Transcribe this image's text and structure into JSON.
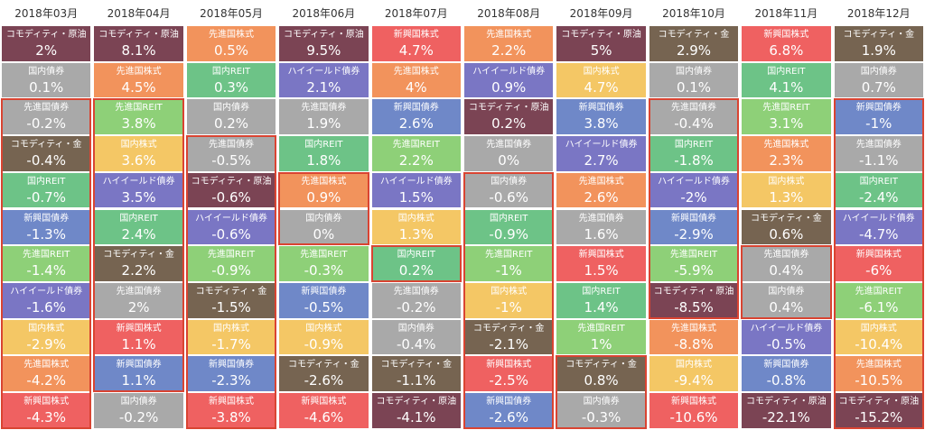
{
  "colors": {
    "コモディティ・原油": "#7b4454",
    "コモディティ・金": "#766451",
    "先進国株式": "#f2935c",
    "国内債券": "#a9a9a9",
    "ハイイールド債券": "#7a76c4",
    "新興国株式": "#ef6161",
    "国内株式": "#f4c765",
    "先進国債券": "#a9a9a9",
    "国内REIT": "#6dc387",
    "新興国債券": "#6f88c8",
    "先進国REIT": "#8ed078"
  },
  "highlight_color": "#d94432",
  "chart_data": {
    "type": "table",
    "columns": [
      "2018年03月",
      "2018年04月",
      "2018年05月",
      "2018年06月",
      "2018年07月",
      "2018年08月",
      "2018年09月",
      "2018年10月",
      "2018年11月",
      "2018年12月"
    ],
    "data": [
      [
        {
          "name": "コモディティ・原油",
          "value": "2%"
        },
        {
          "name": "国内債券",
          "value": "0.1%"
        },
        {
          "name": "先進国債券",
          "value": "-0.2%"
        },
        {
          "name": "コモディティ・金",
          "value": "-0.4%"
        },
        {
          "name": "国内REIT",
          "value": "-0.7%"
        },
        {
          "name": "新興国債券",
          "value": "-1.3%"
        },
        {
          "name": "先進国REIT",
          "value": "-1.4%"
        },
        {
          "name": "ハイイールド債券",
          "value": "-1.6%"
        },
        {
          "name": "国内株式",
          "value": "-2.9%"
        },
        {
          "name": "先進国株式",
          "value": "-4.2%"
        },
        {
          "name": "新興国株式",
          "value": "-4.3%"
        }
      ],
      [
        {
          "name": "コモディティ・原油",
          "value": "8.1%"
        },
        {
          "name": "先進国株式",
          "value": "4.5%"
        },
        {
          "name": "先進国REIT",
          "value": "3.8%"
        },
        {
          "name": "国内株式",
          "value": "3.6%"
        },
        {
          "name": "ハイイールド債券",
          "value": "3.5%"
        },
        {
          "name": "国内REIT",
          "value": "2.4%"
        },
        {
          "name": "コモディティ・金",
          "value": "2.2%"
        },
        {
          "name": "先進国債券",
          "value": "2%"
        },
        {
          "name": "新興国株式",
          "value": "1.1%"
        },
        {
          "name": "新興国債券",
          "value": "1.1%"
        },
        {
          "name": "国内債券",
          "value": "-0.2%"
        }
      ],
      [
        {
          "name": "先進国株式",
          "value": "0.5%"
        },
        {
          "name": "国内REIT",
          "value": "0.3%"
        },
        {
          "name": "国内債券",
          "value": "0.2%"
        },
        {
          "name": "先進国債券",
          "value": "-0.5%"
        },
        {
          "name": "コモディティ・原油",
          "value": "-0.6%"
        },
        {
          "name": "ハイイールド債券",
          "value": "-0.6%"
        },
        {
          "name": "先進国REIT",
          "value": "-0.9%"
        },
        {
          "name": "コモディティ・金",
          "value": "-1.5%"
        },
        {
          "name": "国内株式",
          "value": "-1.7%"
        },
        {
          "name": "新興国債券",
          "value": "-2.3%"
        },
        {
          "name": "新興国株式",
          "value": "-3.8%"
        }
      ],
      [
        {
          "name": "コモディティ・原油",
          "value": "9.5%"
        },
        {
          "name": "ハイイールド債券",
          "value": "2.1%"
        },
        {
          "name": "先進国債券",
          "value": "1.9%"
        },
        {
          "name": "国内REIT",
          "value": "1.8%"
        },
        {
          "name": "先進国株式",
          "value": "0.9%"
        },
        {
          "name": "国内債券",
          "value": "0%"
        },
        {
          "name": "先進国REIT",
          "value": "-0.3%"
        },
        {
          "name": "新興国債券",
          "value": "-0.5%"
        },
        {
          "name": "国内株式",
          "value": "-0.9%"
        },
        {
          "name": "コモディティ・金",
          "value": "-2.6%"
        },
        {
          "name": "新興国株式",
          "value": "-4.6%"
        }
      ],
      [
        {
          "name": "新興国株式",
          "value": "4.7%"
        },
        {
          "name": "先進国株式",
          "value": "4%"
        },
        {
          "name": "新興国債券",
          "value": "2.6%"
        },
        {
          "name": "先進国REIT",
          "value": "2.2%"
        },
        {
          "name": "ハイイールド債券",
          "value": "1.5%"
        },
        {
          "name": "国内株式",
          "value": "1.3%"
        },
        {
          "name": "国内REIT",
          "value": "0.2%"
        },
        {
          "name": "先進国債券",
          "value": "-0.2%"
        },
        {
          "name": "国内債券",
          "value": "-0.4%"
        },
        {
          "name": "コモディティ・金",
          "value": "-1.1%"
        },
        {
          "name": "コモディティ・原油",
          "value": "-4.1%"
        }
      ],
      [
        {
          "name": "先進国株式",
          "value": "2.2%"
        },
        {
          "name": "ハイイールド債券",
          "value": "0.9%"
        },
        {
          "name": "コモディティ・原油",
          "value": "0.2%"
        },
        {
          "name": "先進国債券",
          "value": "0%"
        },
        {
          "name": "国内債券",
          "value": "-0.6%"
        },
        {
          "name": "国内REIT",
          "value": "-0.9%"
        },
        {
          "name": "先進国REIT",
          "value": "-1%"
        },
        {
          "name": "国内株式",
          "value": "-1%"
        },
        {
          "name": "コモディティ・金",
          "value": "-2.1%"
        },
        {
          "name": "新興国株式",
          "value": "-2.5%"
        },
        {
          "name": "新興国債券",
          "value": "-2.6%"
        }
      ],
      [
        {
          "name": "コモディティ・原油",
          "value": "5%"
        },
        {
          "name": "国内株式",
          "value": "4.7%"
        },
        {
          "name": "新興国債券",
          "value": "3.8%"
        },
        {
          "name": "ハイイールド債券",
          "value": "2.7%"
        },
        {
          "name": "先進国株式",
          "value": "2.6%"
        },
        {
          "name": "先進国債券",
          "value": "1.6%"
        },
        {
          "name": "新興国株式",
          "value": "1.5%"
        },
        {
          "name": "国内REIT",
          "value": "1.4%"
        },
        {
          "name": "先進国REIT",
          "value": "1%"
        },
        {
          "name": "コモディティ・金",
          "value": "0.8%"
        },
        {
          "name": "国内債券",
          "value": "-0.3%"
        }
      ],
      [
        {
          "name": "コモディティ・金",
          "value": "2.9%"
        },
        {
          "name": "国内債券",
          "value": "0.1%"
        },
        {
          "name": "先進国債券",
          "value": "-0.4%"
        },
        {
          "name": "国内REIT",
          "value": "-1.8%"
        },
        {
          "name": "ハイイールド債券",
          "value": "-2%"
        },
        {
          "name": "新興国債券",
          "value": "-2.9%"
        },
        {
          "name": "先進国REIT",
          "value": "-5.9%"
        },
        {
          "name": "コモディティ・原油",
          "value": "-8.5%"
        },
        {
          "name": "先進国株式",
          "value": "-8.8%"
        },
        {
          "name": "国内株式",
          "value": "-9.4%"
        },
        {
          "name": "新興国株式",
          "value": "-10.6%"
        }
      ],
      [
        {
          "name": "新興国株式",
          "value": "6.8%"
        },
        {
          "name": "国内REIT",
          "value": "4.1%"
        },
        {
          "name": "先進国REIT",
          "value": "3.1%"
        },
        {
          "name": "先進国株式",
          "value": "2.3%"
        },
        {
          "name": "国内株式",
          "value": "1.3%"
        },
        {
          "name": "コモディティ・金",
          "value": "0.6%"
        },
        {
          "name": "先進国債券",
          "value": "0.4%"
        },
        {
          "name": "国内債券",
          "value": "0.4%"
        },
        {
          "name": "ハイイールド債券",
          "value": "-0.5%"
        },
        {
          "name": "新興国債券",
          "value": "-0.8%"
        },
        {
          "name": "コモディティ・原油",
          "value": "-22.1%"
        }
      ],
      [
        {
          "name": "コモディティ・金",
          "value": "1.9%"
        },
        {
          "name": "国内債券",
          "value": "0.7%"
        },
        {
          "name": "新興国債券",
          "value": "-1%"
        },
        {
          "name": "先進国債券",
          "value": "-1.1%"
        },
        {
          "name": "国内REIT",
          "value": "-2.4%"
        },
        {
          "name": "ハイイールド債券",
          "value": "-4.7%"
        },
        {
          "name": "新興国株式",
          "value": "-6%"
        },
        {
          "name": "先進国REIT",
          "value": "-6.1%"
        },
        {
          "name": "国内株式",
          "value": "-10.4%"
        },
        {
          "name": "先進国株式",
          "value": "-10.5%"
        },
        {
          "name": "コモディティ・原油",
          "value": "-15.2%"
        }
      ]
    ],
    "highlight_ranges": [
      {
        "col": 0,
        "start": 2,
        "end": 10
      },
      {
        "col": 1,
        "start": 2,
        "end": 9
      },
      {
        "col": 2,
        "start": 3,
        "end": 10
      },
      {
        "col": 3,
        "start": 4,
        "end": 5
      },
      {
        "col": 4,
        "start": 6,
        "end": 6
      },
      {
        "col": 5,
        "start": 4,
        "end": 10
      },
      {
        "col": 6,
        "start": 9,
        "end": 10
      },
      {
        "col": 7,
        "start": 2,
        "end": 7
      },
      {
        "col": 8,
        "start": 6,
        "end": 7
      },
      {
        "col": 9,
        "start": 2,
        "end": 10
      }
    ]
  }
}
